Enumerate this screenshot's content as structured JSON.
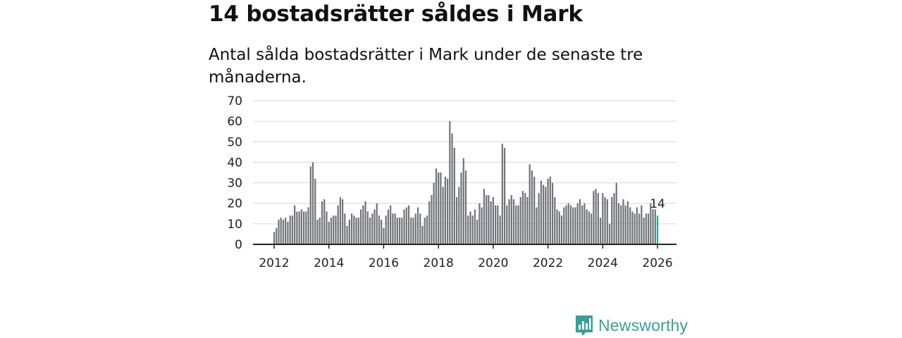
{
  "headline": "14 bostadsrätter såldes i Mark",
  "chart_data": {
    "type": "bar",
    "title": "Antal sålda bostadsrätter i Mark under de senaste tre månaderna.",
    "xlabel": "",
    "ylabel": "",
    "ylim": [
      0,
      70
    ],
    "yticks": [
      0,
      10,
      20,
      30,
      40,
      50,
      60,
      70
    ],
    "xticks": [
      2012,
      2014,
      2016,
      2018,
      2020,
      2022,
      2024,
      2026
    ],
    "start": {
      "year": 2012,
      "month": 1
    },
    "highlight_color": "#25a89b",
    "bar_color": "#72737a",
    "last_value_label": "14",
    "values": [
      6,
      8,
      12,
      13,
      12,
      13,
      11,
      14,
      14,
      19,
      16,
      16,
      17,
      16,
      16,
      18,
      38,
      40,
      32,
      12,
      13,
      21,
      22,
      16,
      11,
      13,
      14,
      14,
      19,
      23,
      22,
      15,
      9,
      12,
      15,
      14,
      13,
      13,
      17,
      19,
      21,
      16,
      13,
      15,
      17,
      20,
      14,
      12,
      8,
      14,
      17,
      19,
      15,
      15,
      13,
      13,
      13,
      17,
      18,
      19,
      13,
      13,
      15,
      18,
      15,
      9,
      13,
      14,
      21,
      24,
      30,
      37,
      35,
      35,
      28,
      33,
      32,
      60,
      54,
      47,
      23,
      28,
      35,
      42,
      36,
      14,
      16,
      14,
      17,
      12,
      20,
      18,
      27,
      24,
      24,
      21,
      23,
      19,
      19,
      14,
      49,
      47,
      19,
      22,
      24,
      22,
      19,
      19,
      23,
      26,
      25,
      23,
      39,
      36,
      33,
      18,
      25,
      31,
      29,
      28,
      32,
      33,
      30,
      23,
      17,
      16,
      14,
      18,
      19,
      20,
      19,
      18,
      18,
      20,
      22,
      19,
      20,
      17,
      16,
      15,
      26,
      27,
      25,
      13,
      25,
      23,
      22,
      10,
      23,
      25,
      30,
      20,
      19,
      22,
      19,
      21,
      18,
      16,
      15,
      18,
      15,
      19,
      13,
      15,
      15,
      20,
      17,
      17,
      14
    ]
  },
  "brand": {
    "name": "Newsworthy",
    "icon": "bar-chart-speech-icon",
    "color": "#3a9e96"
  }
}
